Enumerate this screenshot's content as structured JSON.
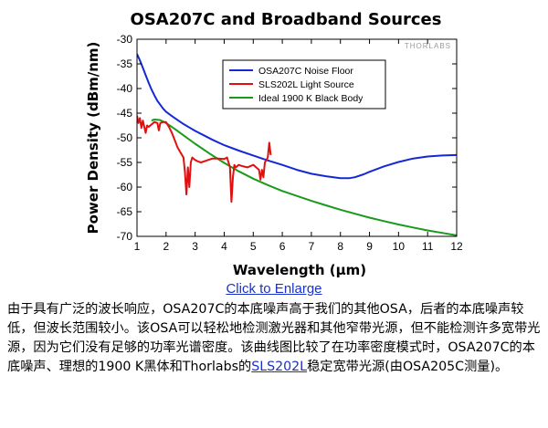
{
  "chart_data": {
    "type": "line",
    "title": "OSA207C and Broadband Sources",
    "xlabel": "Wavelength (μm)",
    "ylabel": "Power Density (dBm/nm)",
    "xlim": [
      1,
      12
    ],
    "ylim": [
      -70,
      -30
    ],
    "xticks": [
      "1",
      "2",
      "3",
      "4",
      "5",
      "6",
      "7",
      "8",
      "9",
      "10",
      "11",
      "12"
    ],
    "yticks": [
      "-30",
      "-35",
      "-40",
      "-45",
      "-50",
      "-55",
      "-60",
      "-65",
      "-70"
    ],
    "grid": false,
    "legend_position": "top-right",
    "watermark": "THORLABS",
    "series": [
      {
        "name": "OSA207C Noise Floor",
        "color": "#1428d8",
        "x": [
          1.0,
          1.1,
          1.2,
          1.3,
          1.4,
          1.5,
          1.6,
          1.7,
          1.8,
          1.9,
          2.0,
          2.2,
          2.4,
          2.6,
          2.8,
          3.0,
          3.3,
          3.6,
          4.0,
          4.5,
          5.0,
          5.5,
          6.0,
          6.5,
          7.0,
          7.5,
          8.0,
          8.3,
          8.5,
          8.8,
          9.0,
          9.5,
          10.0,
          10.5,
          11.0,
          11.5,
          12.0
        ],
        "y": [
          -33,
          -34.3,
          -35.8,
          -37.3,
          -38.8,
          -40.2,
          -41.4,
          -42.5,
          -43.3,
          -44.1,
          -44.7,
          -45.6,
          -46.4,
          -47.2,
          -47.9,
          -48.6,
          -49.5,
          -50.4,
          -51.5,
          -52.6,
          -53.6,
          -54.6,
          -55.5,
          -56.5,
          -57.3,
          -57.8,
          -58.2,
          -58.2,
          -58.0,
          -57.4,
          -56.9,
          -55.8,
          -54.9,
          -54.2,
          -53.8,
          -53.6,
          -53.5
        ]
      },
      {
        "name": "SLS202L Light Source",
        "color": "#e01010",
        "x": [
          1.0,
          1.05,
          1.1,
          1.15,
          1.2,
          1.3,
          1.35,
          1.4,
          1.5,
          1.6,
          1.7,
          1.75,
          1.8,
          1.9,
          2.0,
          2.1,
          2.2,
          2.3,
          2.4,
          2.5,
          2.6,
          2.65,
          2.7,
          2.75,
          2.8,
          2.85,
          2.9,
          3.0,
          3.1,
          3.2,
          3.4,
          3.6,
          3.8,
          4.0,
          4.1,
          4.2,
          4.25,
          4.3,
          4.35,
          4.4,
          4.5,
          4.6,
          4.8,
          5.0,
          5.1,
          5.2,
          5.25,
          5.3,
          5.35,
          5.4,
          5.5,
          5.55,
          5.6
        ],
        "y": [
          -45.5,
          -47,
          -46,
          -48,
          -46.5,
          -49,
          -47.5,
          -47.8,
          -47.3,
          -46.8,
          -47,
          -48.5,
          -47,
          -46.8,
          -46.8,
          -47.8,
          -49,
          -50.5,
          -52,
          -53,
          -54,
          -57,
          -61.5,
          -56,
          -60,
          -55,
          -54,
          -54.5,
          -54.8,
          -55,
          -54.6,
          -54.2,
          -54.2,
          -54.3,
          -54,
          -56,
          -63,
          -58,
          -55.5,
          -56,
          -55.5,
          -55.7,
          -56,
          -55.5,
          -56,
          -56.5,
          -58.5,
          -56.5,
          -58,
          -55,
          -54,
          -51,
          -53.5
        ]
      },
      {
        "name": "Ideal 1900 K Black Body",
        "color": "#1a9a1a",
        "x": [
          1.5,
          1.6,
          1.8,
          2.0,
          2.3,
          2.6,
          3.0,
          3.5,
          4.0,
          4.5,
          5.0,
          5.5,
          6.0,
          6.5,
          7.0,
          7.5,
          8.0,
          8.5,
          9.0,
          9.5,
          10.0,
          10.5,
          11.0,
          11.5,
          12.0
        ],
        "y": [
          -46.5,
          -46.3,
          -46.4,
          -47,
          -48.2,
          -49.5,
          -51.2,
          -53.2,
          -55.1,
          -56.8,
          -58.3,
          -59.6,
          -60.8,
          -61.8,
          -62.8,
          -63.7,
          -64.6,
          -65.4,
          -66.2,
          -66.9,
          -67.6,
          -68.2,
          -68.8,
          -69.3,
          -69.8
        ]
      }
    ]
  },
  "enlarge_link": "Click to Enlarge",
  "caption": {
    "part1": "由于具有广泛的波长响应，OSA207C的本底噪声高于我们的其他OSA，后者的本底噪声较低，但波长范围较小。该OSA可以轻松地检测激光器和其他窄带光源，但不能检测许多宽带光源，因为它们没有足够的功率光谱密度。该曲线图比较了在功率密度模式时，OSA207C的本底噪声、理想的1900 K黑体和Thorlabs的",
    "link": "SLS202L",
    "part2": "稳定宽带光源(由OSA205C测量)。"
  }
}
